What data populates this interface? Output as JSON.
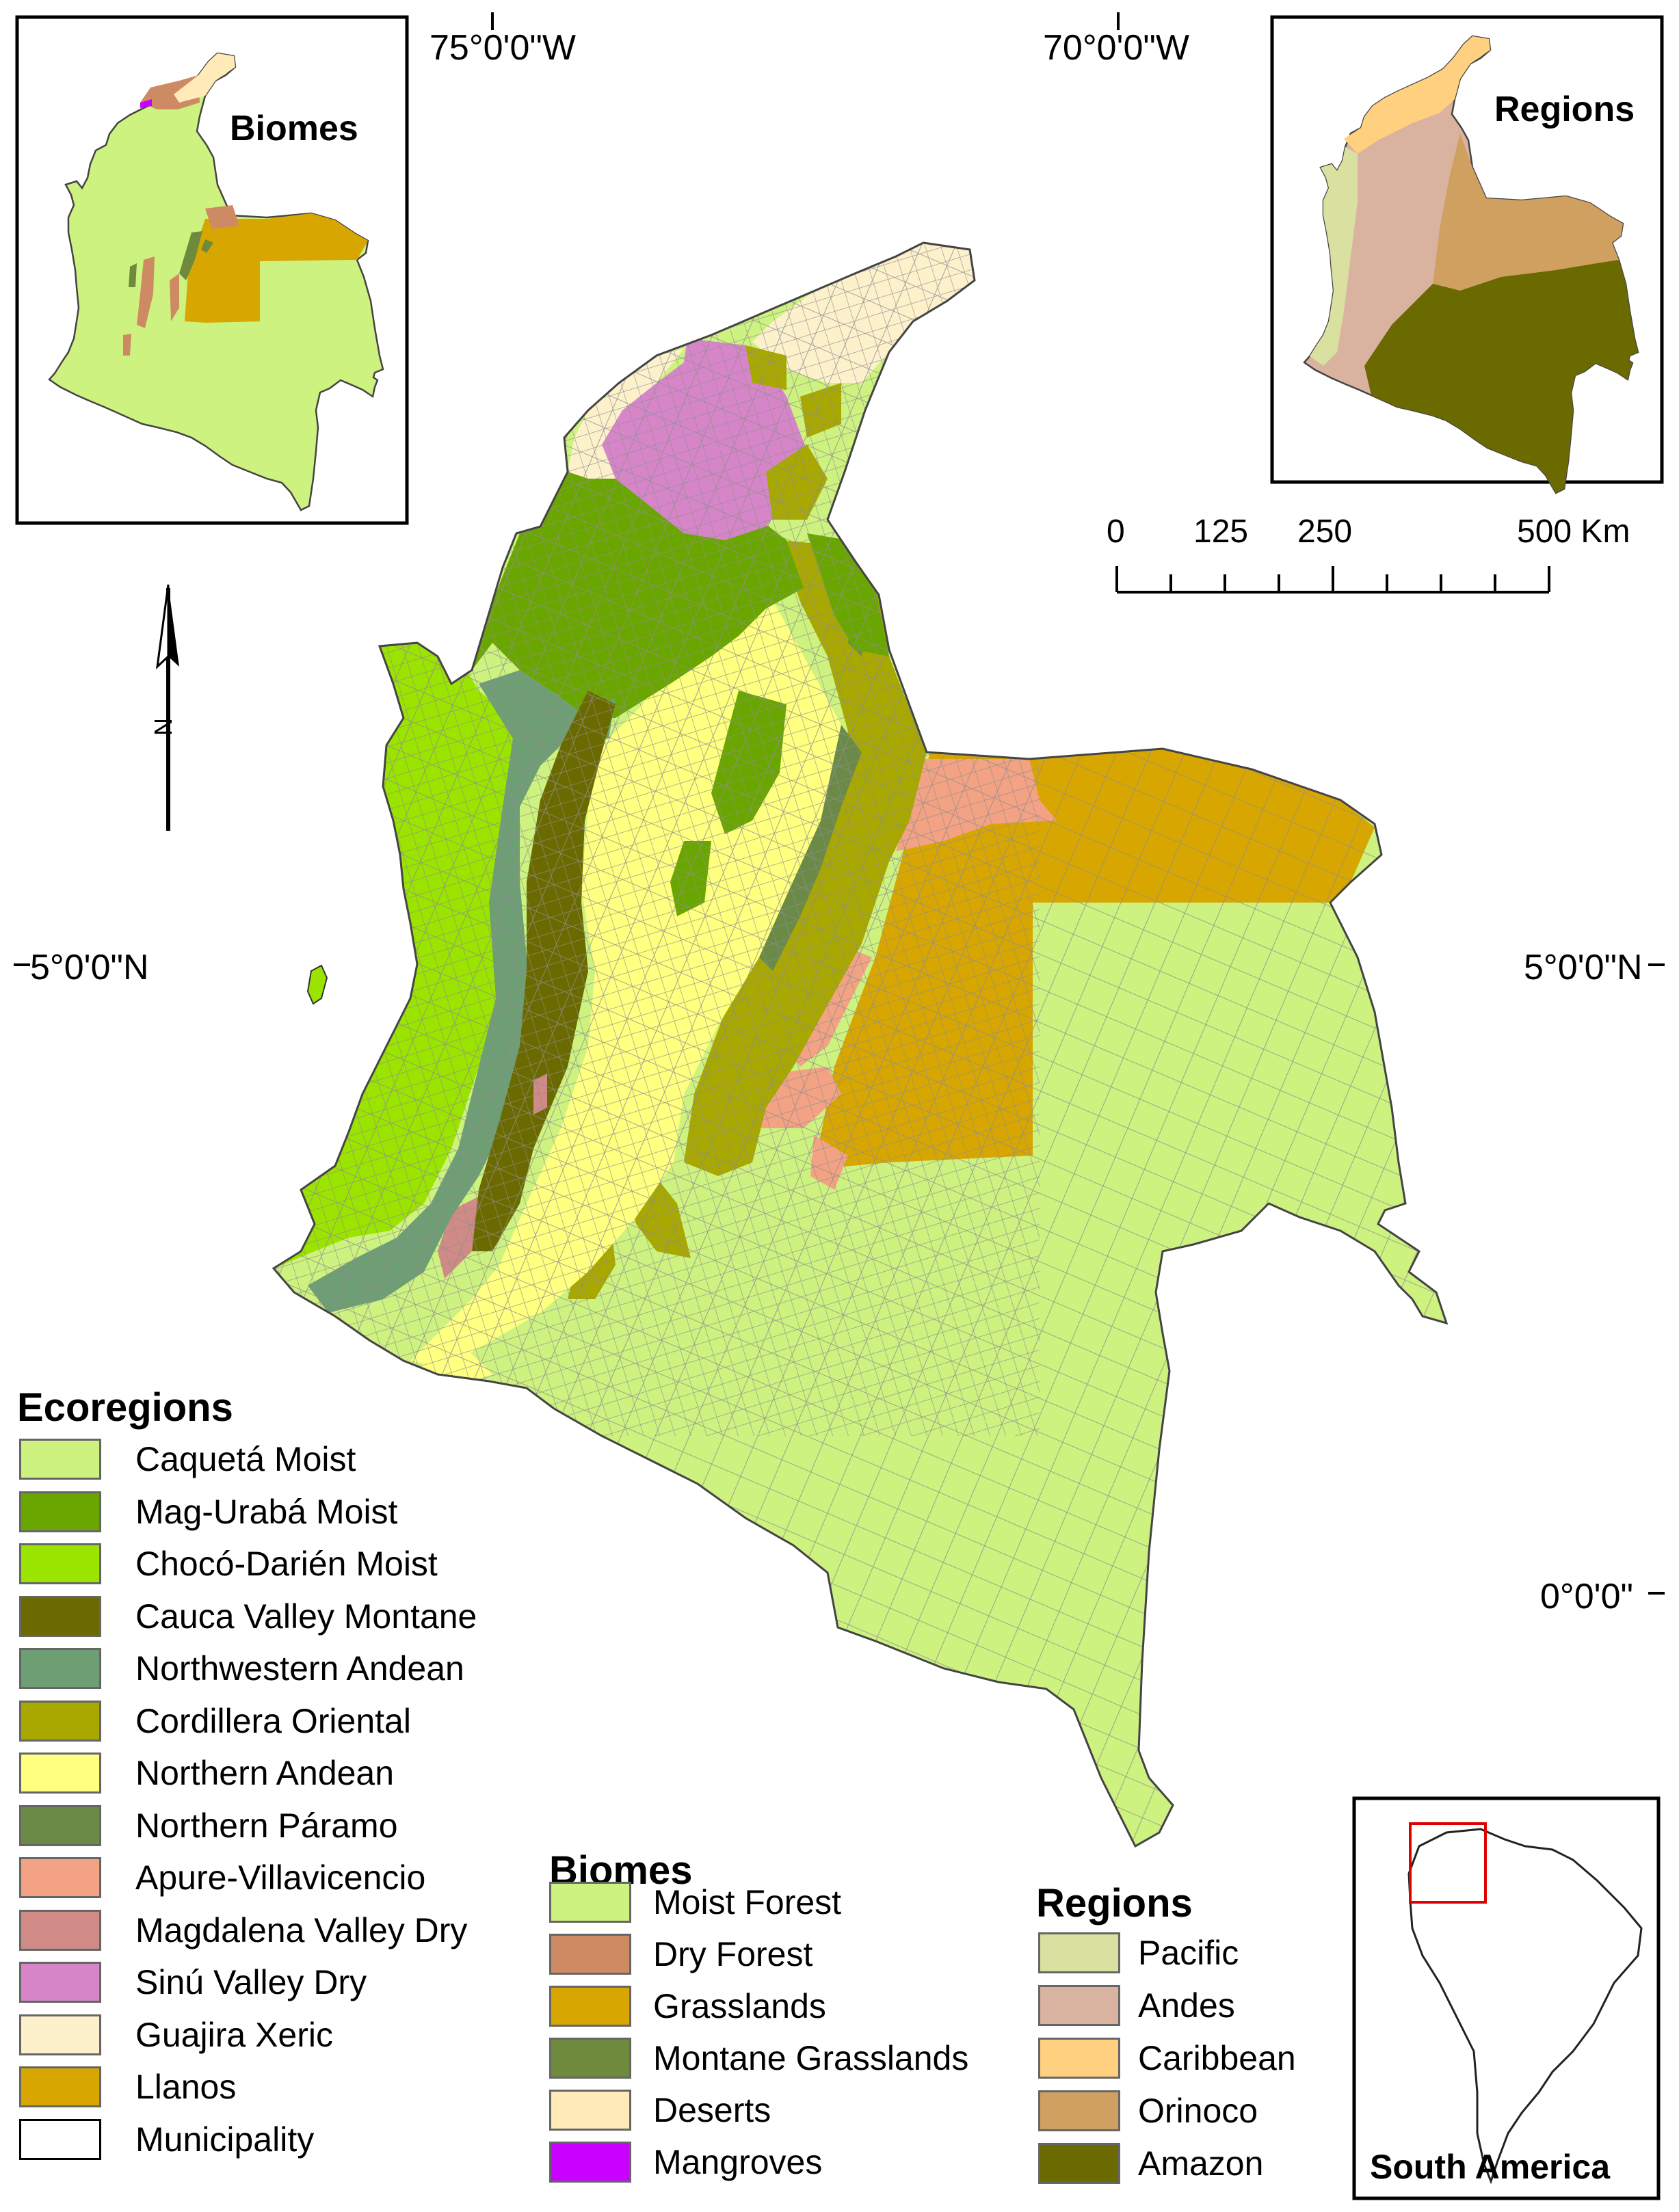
{
  "graticule": {
    "lon_75": "75°0'0\"W",
    "lon_70": "70°0'0\"W",
    "lat_5_left": "5°0'0\"N",
    "lat_5_right": "5°0'0\"N",
    "lat_0": "0°0'0\""
  },
  "insets": {
    "biomes_title": "Biomes",
    "regions_title": "Regions",
    "south_america_title": "South America"
  },
  "north_arrow": {
    "letter": "N"
  },
  "scale_bar": {
    "ticks": [
      "0",
      "125",
      "250",
      "500 Km"
    ]
  },
  "colors": {
    "caqueta": "#cdf27f",
    "mag_uraba": "#6aa600",
    "choco": "#9ae400",
    "cauca": "#6b6a00",
    "nw_andean": "#6e9e74",
    "cordillera": "#a8a800",
    "n_andean": "#ffff88",
    "paramo": "#6b8a48",
    "apure": "#f3a283",
    "magdalena": "#d49b92",
    "sinu": "#d785c9",
    "guajira": "#fdf1cc",
    "llanos": "#d8a600",
    "municipality_line": "#9a9a9a"
  },
  "legends": {
    "ecoregions": {
      "title": "Ecoregions",
      "items": [
        {
          "label": "Caquetá Moist",
          "color": "#cdf27f"
        },
        {
          "label": "Mag-Urabá Moist",
          "color": "#6aa600"
        },
        {
          "label": "Chocó-Darién Moist",
          "color": "#9ae400"
        },
        {
          "label": "Cauca Valley Montane",
          "color": "#6b6a00"
        },
        {
          "label": "Northwestern Andean",
          "color": "#6e9e74"
        },
        {
          "label": "Cordillera Oriental",
          "color": "#a8a800"
        },
        {
          "label": "Northern Andean",
          "color": "#ffff80"
        },
        {
          "label": "Northern Páramo",
          "color": "#6b8a48"
        },
        {
          "label": "Apure-Villavicencio",
          "color": "#f3a283"
        },
        {
          "label": "Magdalena Valley Dry",
          "color": "#d08b86"
        },
        {
          "label": "Sinú Valley Dry",
          "color": "#d785c9"
        },
        {
          "label": "Guajira Xeric",
          "color": "#fdf1cc"
        },
        {
          "label": "Llanos",
          "color": "#d8a600"
        },
        {
          "label": "Municipality",
          "color": "#ffffff"
        }
      ]
    },
    "biomes": {
      "title": "Biomes",
      "items": [
        {
          "label": "Moist Forest",
          "color": "#cdf27f"
        },
        {
          "label": "Dry Forest",
          "color": "#cd8a63"
        },
        {
          "label": "Grasslands",
          "color": "#d8a600"
        },
        {
          "label": "Montane Grasslands",
          "color": "#6e8a3c"
        },
        {
          "label": "Deserts",
          "color": "#ffeab8"
        },
        {
          "label": "Mangroves",
          "color": "#c800ff"
        }
      ]
    },
    "regions": {
      "title": "Regions",
      "items": [
        {
          "label": "Pacific",
          "color": "#d9e0a0"
        },
        {
          "label": "Andes",
          "color": "#d9b3a0"
        },
        {
          "label": "Caribbean",
          "color": "#ffd080"
        },
        {
          "label": "Orinoco",
          "color": "#cfa060"
        },
        {
          "label": "Amazon",
          "color": "#6b6a00"
        }
      ]
    }
  }
}
